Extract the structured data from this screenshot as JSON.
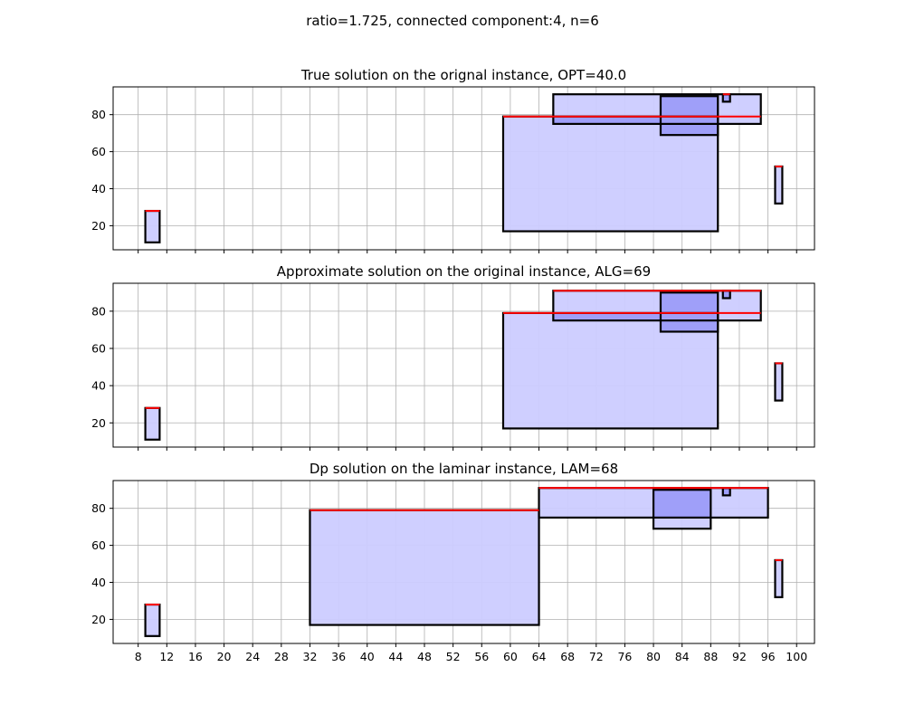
{
  "figure_title": "ratio=1.725, connected component:4, n=6",
  "colors": {
    "fill": "#ccccff",
    "overlap_fill": "#9f9ff9",
    "edge": "#000000",
    "top_line": "#ff0000",
    "grid": "#b0b0b0"
  },
  "chart_data": [
    {
      "type": "rectangles",
      "title": "True solution on the orignal instance, OPT=40.0",
      "xlim": [
        4.5,
        102.5
      ],
      "ylim": [
        7,
        95
      ],
      "xticks": [
        8,
        12,
        16,
        20,
        24,
        28,
        32,
        36,
        40,
        44,
        48,
        52,
        56,
        60,
        64,
        68,
        72,
        76,
        80,
        84,
        88,
        92,
        96,
        100
      ],
      "xtick_labels_visible": false,
      "yticks": [
        20,
        40,
        60,
        80
      ],
      "grid": true,
      "rects": [
        {
          "x1": 9.0,
          "x2": 11.0,
          "y1": 11,
          "y2": 28
        },
        {
          "x1": 59.0,
          "x2": 89.0,
          "y1": 17,
          "y2": 79
        },
        {
          "x1": 66.0,
          "x2": 95.0,
          "y1": 75,
          "y2": 91
        },
        {
          "x1": 81.0,
          "x2": 89.0,
          "y1": 69,
          "y2": 90
        },
        {
          "x1": 89.7,
          "x2": 90.7,
          "y1": 87,
          "y2": 91
        },
        {
          "x1": 97.0,
          "x2": 98.0,
          "y1": 32,
          "y2": 52
        }
      ],
      "red_lines": [
        {
          "x1": 9.0,
          "x2": 11.0,
          "y": 28
        },
        {
          "x1": 59.0,
          "x2": 95.0,
          "y": 79
        },
        {
          "x1": 89.7,
          "x2": 90.7,
          "y": 91
        },
        {
          "x1": 97.0,
          "x2": 98.0,
          "y": 52
        }
      ]
    },
    {
      "type": "rectangles",
      "title": "Approximate solution on the original instance, ALG=69",
      "xlim": [
        4.5,
        102.5
      ],
      "ylim": [
        7,
        95
      ],
      "xticks": [
        8,
        12,
        16,
        20,
        24,
        28,
        32,
        36,
        40,
        44,
        48,
        52,
        56,
        60,
        64,
        68,
        72,
        76,
        80,
        84,
        88,
        92,
        96,
        100
      ],
      "xtick_labels_visible": false,
      "yticks": [
        20,
        40,
        60,
        80
      ],
      "grid": true,
      "rects": [
        {
          "x1": 9.0,
          "x2": 11.0,
          "y1": 11,
          "y2": 28
        },
        {
          "x1": 59.0,
          "x2": 89.0,
          "y1": 17,
          "y2": 79
        },
        {
          "x1": 66.0,
          "x2": 95.0,
          "y1": 75,
          "y2": 91
        },
        {
          "x1": 81.0,
          "x2": 89.0,
          "y1": 69,
          "y2": 90
        },
        {
          "x1": 89.7,
          "x2": 90.7,
          "y1": 87,
          "y2": 91
        },
        {
          "x1": 97.0,
          "x2": 98.0,
          "y1": 32,
          "y2": 52
        }
      ],
      "red_lines": [
        {
          "x1": 9.0,
          "x2": 11.0,
          "y": 28
        },
        {
          "x1": 59.0,
          "x2": 95.0,
          "y": 79
        },
        {
          "x1": 66.0,
          "x2": 95.0,
          "y": 91
        },
        {
          "x1": 97.0,
          "x2": 98.0,
          "y": 52
        }
      ]
    },
    {
      "type": "rectangles",
      "title": "Dp solution on the laminar instance, LAM=68",
      "xlim": [
        4.5,
        102.5
      ],
      "ylim": [
        7,
        95
      ],
      "xticks": [
        8,
        12,
        16,
        20,
        24,
        28,
        32,
        36,
        40,
        44,
        48,
        52,
        56,
        60,
        64,
        68,
        72,
        76,
        80,
        84,
        88,
        92,
        96,
        100
      ],
      "xtick_labels_visible": true,
      "yticks": [
        20,
        40,
        60,
        80
      ],
      "grid": true,
      "rects": [
        {
          "x1": 9.0,
          "x2": 11.0,
          "y1": 11,
          "y2": 28
        },
        {
          "x1": 32.0,
          "x2": 64.0,
          "y1": 17,
          "y2": 79
        },
        {
          "x1": 64.0,
          "x2": 96.0,
          "y1": 75,
          "y2": 91
        },
        {
          "x1": 80.0,
          "x2": 88.0,
          "y1": 69,
          "y2": 90
        },
        {
          "x1": 89.7,
          "x2": 90.7,
          "y1": 87,
          "y2": 91
        },
        {
          "x1": 97.0,
          "x2": 98.0,
          "y1": 32,
          "y2": 52
        }
      ],
      "red_lines": [
        {
          "x1": 9.0,
          "x2": 11.0,
          "y": 28
        },
        {
          "x1": 32.0,
          "x2": 64.0,
          "y": 79
        },
        {
          "x1": 64.0,
          "x2": 96.0,
          "y": 91
        },
        {
          "x1": 97.0,
          "x2": 98.0,
          "y": 52
        }
      ]
    }
  ]
}
